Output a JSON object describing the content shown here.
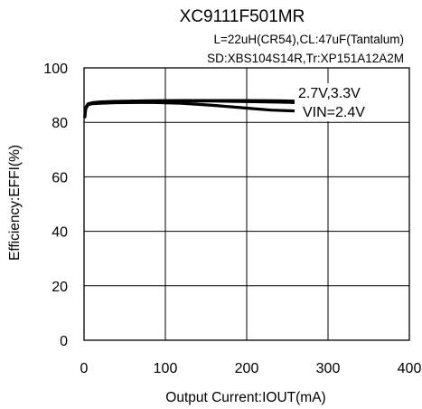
{
  "chart_data": {
    "type": "line",
    "title": "XC9111F501MR",
    "subtitle_lines": [
      "L=22uH(CR54),CL:47uF(Tantalum)",
      "SD:XBS104S14R,Tr:XP151A12A2M"
    ],
    "xlabel": "Output Current:IOUT(mA)",
    "ylabel": "Efficiency:EFFI(%)",
    "xlim": [
      0,
      400
    ],
    "ylim": [
      0,
      100
    ],
    "xticks": [
      "0",
      "100",
      "200",
      "300",
      "400"
    ],
    "yticks": [
      "0",
      "20",
      "40",
      "60",
      "80",
      "100"
    ],
    "grid": true,
    "annotations": [
      "2.7V,3.3V",
      "VIN=2.4V"
    ],
    "series": [
      {
        "label": "2.7V,3.3V",
        "x": [
          1,
          2,
          5,
          10,
          20,
          40,
          80,
          120,
          160,
          200,
          240,
          270
        ],
        "y": [
          82,
          85,
          86.5,
          87,
          87.4,
          87.6,
          87.8,
          87.8,
          87.8,
          87.6,
          87.4,
          87.2
        ]
      },
      {
        "label": "2.7V,3.3V",
        "x": [
          1,
          2,
          5,
          10,
          20,
          40,
          80,
          120,
          150,
          200,
          240,
          270
        ],
        "y": [
          83,
          85.5,
          86.8,
          87.2,
          87.5,
          87.7,
          87.9,
          88,
          88,
          88,
          87.9,
          87.7
        ]
      },
      {
        "label": "VIN=2.4V",
        "x": [
          1,
          2,
          5,
          10,
          20,
          40,
          80,
          120,
          160,
          200,
          230,
          260
        ],
        "y": [
          82,
          85,
          86.5,
          86.8,
          87,
          87.2,
          87.3,
          87,
          86.2,
          85.2,
          84.5,
          84.2
        ]
      }
    ]
  }
}
